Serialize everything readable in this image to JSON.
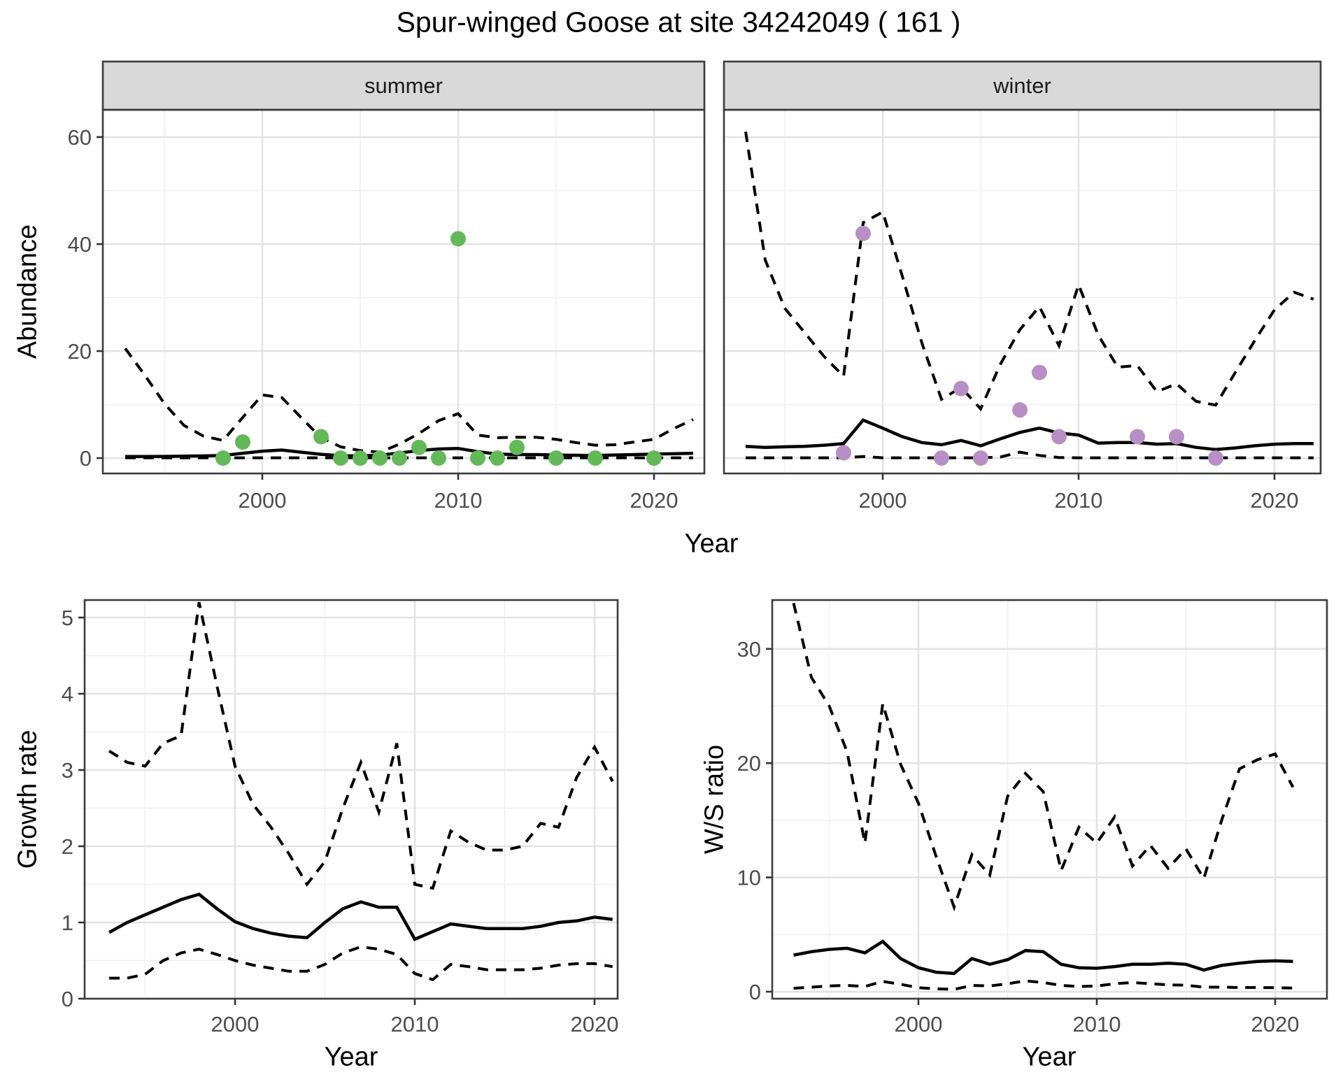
{
  "title": "Spur-winged Goose at site 34242049 ( 161 )",
  "facets": [
    {
      "label": "summer"
    },
    {
      "label": "winter"
    }
  ],
  "axis_titles": {
    "abundance": "Abundance",
    "growth": "Growth rate",
    "ws": "W/S ratio",
    "year": "Year"
  },
  "colors": {
    "summer_point": "#63B958",
    "winter_point": "#B78FC5",
    "fit_line": "#000000",
    "ci_line": "#000000",
    "strip_bg": "#D9D9D9",
    "panel_border": "#3C3C3C",
    "grid_major": "#E3E3E3",
    "grid_minor": "#F0F0F0",
    "tick_mark": "#333333",
    "tick_label": "#4D4D4D"
  },
  "chart_data": [
    {
      "id": "abundance-summer",
      "type": "line",
      "facet": "summer",
      "xlabel": "Year",
      "ylabel": "Abundance",
      "x_ticks": [
        2000,
        2010,
        2020
      ],
      "x_minor": [
        1995,
        2005,
        2015
      ],
      "y_ticks": [
        0,
        20,
        40,
        60
      ],
      "y_minor": [
        10,
        30,
        50
      ],
      "xlim": [
        1991.9,
        2022.6
      ],
      "ylim": [
        -2.9,
        65.1
      ],
      "years": [
        1993,
        1994,
        1995,
        1996,
        1997,
        1998,
        1999,
        2000,
        2001,
        2002,
        2003,
        2004,
        2005,
        2006,
        2007,
        2008,
        2009,
        2010,
        2011,
        2012,
        2013,
        2014,
        2015,
        2016,
        2017,
        2018,
        2019,
        2020,
        2021,
        2022
      ],
      "series": [
        {
          "name": "upper_ci",
          "style": "dashed",
          "values": [
            20.5,
            15.5,
            10.2,
            6.1,
            4.1,
            3.3,
            7.6,
            11.8,
            11.3,
            7.5,
            3.8,
            2.1,
            1.4,
            1.1,
            2.6,
            4.6,
            7.0,
            8.3,
            4.3,
            3.8,
            3.9,
            3.9,
            3.5,
            2.9,
            2.4,
            2.5,
            3.0,
            3.5,
            5.5,
            7.2
          ]
        },
        {
          "name": "fit",
          "style": "solid",
          "values": [
            0.3,
            0.3,
            0.32,
            0.35,
            0.4,
            0.5,
            0.9,
            1.3,
            1.5,
            1.1,
            0.7,
            0.45,
            0.4,
            0.55,
            0.95,
            1.4,
            1.7,
            1.8,
            1.2,
            0.75,
            0.65,
            0.65,
            0.57,
            0.52,
            0.48,
            0.57,
            0.65,
            0.74,
            0.83,
            0.9
          ]
        },
        {
          "name": "lower_ci",
          "style": "dashed",
          "values": [
            0.05,
            0.05,
            0.05,
            0.05,
            0.05,
            0.05,
            0.05,
            0.05,
            0.05,
            0.05,
            0.05,
            0.05,
            0.05,
            0.05,
            0.05,
            0.05,
            0.05,
            0.05,
            0.05,
            0.05,
            0.05,
            0.05,
            0.05,
            0.05,
            0.05,
            0.05,
            0.05,
            0.05,
            0.05,
            0.05
          ]
        }
      ],
      "points": {
        "color_key": "summer_point",
        "data": [
          [
            1998,
            0
          ],
          [
            1999,
            3
          ],
          [
            2003,
            4
          ],
          [
            2004,
            0
          ],
          [
            2005,
            0
          ],
          [
            2006,
            0
          ],
          [
            2007,
            0
          ],
          [
            2008,
            2
          ],
          [
            2009,
            0
          ],
          [
            2010,
            41
          ],
          [
            2011,
            0
          ],
          [
            2012,
            0
          ],
          [
            2013,
            2
          ],
          [
            2015,
            0
          ],
          [
            2017,
            0
          ],
          [
            2020,
            0
          ]
        ]
      }
    },
    {
      "id": "abundance-winter",
      "type": "line",
      "facet": "winter",
      "xlabel": "Year",
      "ylabel": "Abundance",
      "x_ticks": [
        2000,
        2010,
        2020
      ],
      "x_minor": [
        1995,
        2005,
        2015
      ],
      "y_ticks": [
        0,
        20,
        40,
        60
      ],
      "y_minor": [
        10,
        30,
        50
      ],
      "xlim": [
        1991.9,
        2022.4
      ],
      "ylim": [
        -2.9,
        65.1
      ],
      "years": [
        1993,
        1994,
        1995,
        1996,
        1997,
        1998,
        1999,
        2000,
        2001,
        2002,
        2003,
        2004,
        2005,
        2006,
        2007,
        2008,
        2009,
        2010,
        2011,
        2012,
        2013,
        2014,
        2015,
        2016,
        2017,
        2018,
        2019,
        2020,
        2021,
        2022
      ],
      "series": [
        {
          "name": "upper_ci",
          "style": "dashed",
          "values": [
            61,
            37,
            28,
            23.5,
            19,
            15.3,
            44,
            46,
            34,
            21.5,
            11,
            13.2,
            9.2,
            17.5,
            24,
            28.3,
            21,
            32.4,
            23,
            17,
            17.3,
            12.4,
            13.9,
            10.6,
            9.9,
            16,
            22,
            27.7,
            31,
            29.7
          ]
        },
        {
          "name": "fit",
          "style": "solid",
          "values": [
            2.2,
            2.0,
            2.1,
            2.2,
            2.4,
            2.7,
            7.1,
            5.6,
            4.0,
            2.9,
            2.5,
            3.3,
            2.3,
            3.6,
            4.8,
            5.6,
            4.7,
            4.3,
            2.8,
            2.9,
            2.9,
            2.6,
            2.7,
            2.0,
            1.6,
            1.9,
            2.3,
            2.6,
            2.7,
            2.7
          ]
        },
        {
          "name": "lower_ci",
          "style": "dashed",
          "values": [
            0.05,
            0.05,
            0.05,
            0.05,
            0.05,
            0.05,
            0.3,
            0.05,
            0.05,
            0.05,
            0.05,
            0.05,
            0.05,
            0.2,
            1.1,
            0.5,
            0.1,
            0.05,
            0.05,
            0.05,
            0.05,
            0.05,
            0.05,
            0.05,
            0.05,
            0.05,
            0.05,
            0.05,
            0.05,
            0.05
          ]
        }
      ],
      "points": {
        "color_key": "winter_point",
        "data": [
          [
            1998,
            1
          ],
          [
            1999,
            42
          ],
          [
            2003,
            0
          ],
          [
            2004,
            13
          ],
          [
            2005,
            0
          ],
          [
            2007,
            9
          ],
          [
            2008,
            16
          ],
          [
            2009,
            4
          ],
          [
            2013,
            4
          ],
          [
            2015,
            4
          ],
          [
            2017,
            0
          ]
        ]
      }
    },
    {
      "id": "growth-rate",
      "type": "line",
      "facet": null,
      "xlabel": "Year",
      "ylabel": "Growth rate",
      "x_ticks": [
        2000,
        2010,
        2020
      ],
      "x_minor": [
        1995,
        2005,
        2015
      ],
      "y_ticks": [
        0,
        1,
        2,
        3,
        4,
        5
      ],
      "y_minor": [
        0.5,
        1.5,
        2.5,
        3.5,
        4.5
      ],
      "xlim": [
        1991.6,
        2021.3
      ],
      "ylim": [
        0,
        5.23
      ],
      "years": [
        1993,
        1994,
        1995,
        1996,
        1997,
        1998,
        1999,
        2000,
        2001,
        2002,
        2003,
        2004,
        2005,
        2006,
        2007,
        2008,
        2009,
        2010,
        2011,
        2012,
        2013,
        2014,
        2015,
        2016,
        2017,
        2018,
        2019,
        2020,
        2021
      ],
      "series": [
        {
          "name": "upper_ci",
          "style": "dashed",
          "values": [
            3.25,
            3.1,
            3.05,
            3.35,
            3.45,
            5.2,
            4.1,
            3.05,
            2.55,
            2.25,
            1.9,
            1.5,
            1.8,
            2.5,
            3.1,
            2.45,
            3.35,
            1.5,
            1.45,
            2.2,
            2.05,
            1.95,
            1.95,
            2.0,
            2.3,
            2.25,
            2.9,
            3.3,
            2.85
          ]
        },
        {
          "name": "fit",
          "style": "solid",
          "values": [
            0.87,
            1.0,
            1.1,
            1.2,
            1.3,
            1.37,
            1.18,
            1.01,
            0.92,
            0.86,
            0.82,
            0.8,
            1.0,
            1.18,
            1.27,
            1.2,
            1.2,
            0.78,
            0.88,
            0.98,
            0.95,
            0.92,
            0.92,
            0.92,
            0.95,
            1.0,
            1.02,
            1.07,
            1.04
          ]
        },
        {
          "name": "lower_ci",
          "style": "dashed",
          "values": [
            0.27,
            0.27,
            0.32,
            0.5,
            0.6,
            0.65,
            0.58,
            0.5,
            0.44,
            0.4,
            0.36,
            0.36,
            0.45,
            0.6,
            0.68,
            0.65,
            0.58,
            0.33,
            0.25,
            0.45,
            0.42,
            0.38,
            0.38,
            0.38,
            0.4,
            0.44,
            0.46,
            0.46,
            0.42
          ]
        }
      ],
      "points": null
    },
    {
      "id": "ws-ratio",
      "type": "line",
      "facet": null,
      "xlabel": "Year",
      "ylabel": "W/S ratio",
      "x_ticks": [
        2000,
        2010,
        2020
      ],
      "x_minor": [
        1995,
        2005,
        2015
      ],
      "y_ticks": [
        0,
        10,
        20,
        30
      ],
      "y_minor": [
        5,
        15,
        25
      ],
      "xlim": [
        1991.8,
        2022.9
      ],
      "ylim": [
        -0.6,
        34.3
      ],
      "years": [
        1993,
        1994,
        1995,
        1996,
        1997,
        1998,
        1999,
        2000,
        2001,
        2002,
        2003,
        2004,
        2005,
        2006,
        2007,
        2008,
        2009,
        2010,
        2011,
        2012,
        2013,
        2014,
        2015,
        2016,
        2017,
        2018,
        2019,
        2020,
        2021
      ],
      "series": [
        {
          "name": "upper_ci",
          "style": "dashed",
          "values": [
            34,
            27.5,
            25,
            21,
            13,
            25.2,
            19.9,
            16.5,
            11.8,
            7.4,
            12,
            10.2,
            17.1,
            19.1,
            17.5,
            10.6,
            14.4,
            13,
            15.3,
            11,
            12.8,
            10.8,
            12.5,
            9.9,
            15,
            19.5,
            20.3,
            20.8,
            17.9
          ]
        },
        {
          "name": "fit",
          "style": "solid",
          "values": [
            3.2,
            3.5,
            3.7,
            3.8,
            3.4,
            4.4,
            2.9,
            2.1,
            1.7,
            1.6,
            2.9,
            2.4,
            2.8,
            3.6,
            3.5,
            2.4,
            2.1,
            2.05,
            2.2,
            2.4,
            2.4,
            2.5,
            2.4,
            1.9,
            2.3,
            2.5,
            2.65,
            2.7,
            2.65
          ]
        },
        {
          "name": "lower_ci",
          "style": "dashed",
          "values": [
            0.3,
            0.4,
            0.5,
            0.55,
            0.45,
            0.9,
            0.65,
            0.35,
            0.25,
            0.2,
            0.55,
            0.5,
            0.7,
            0.95,
            0.8,
            0.55,
            0.45,
            0.5,
            0.7,
            0.8,
            0.7,
            0.6,
            0.57,
            0.4,
            0.4,
            0.37,
            0.37,
            0.35,
            0.32
          ]
        }
      ],
      "points": null
    }
  ]
}
